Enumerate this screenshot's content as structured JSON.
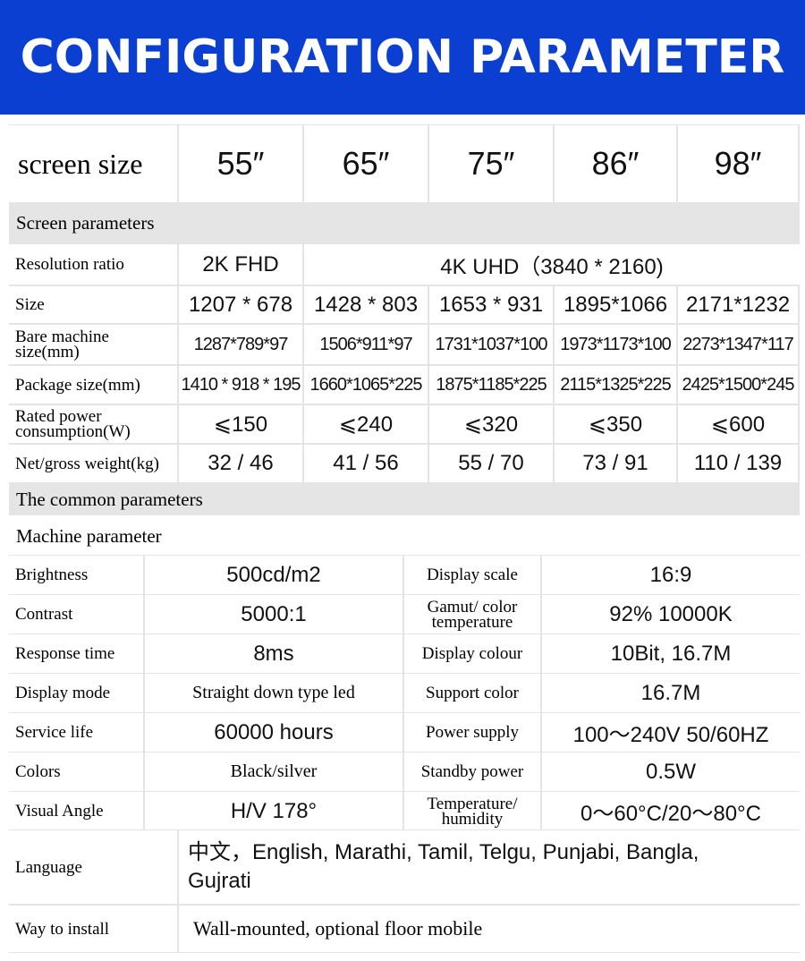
{
  "header": {
    "title": "CONFIGURATION PARAMETER",
    "color": "#0b3fd1"
  },
  "screen_size": {
    "label": "screen size",
    "sizes": [
      "55″",
      "65″",
      "75″",
      "86″",
      "98″"
    ]
  },
  "sections": {
    "screen": "Screen parameters",
    "common": "The common parameters",
    "machine": "Machine parameter"
  },
  "resolution": {
    "label": "Resolution ratio",
    "v55": "2K FHD",
    "other": "4K UHD（3840 * 2160)"
  },
  "screen_rows": [
    {
      "label": "Size",
      "values": [
        "1207 * 678",
        "1428 * 803",
        "1653 * 931",
        "1895*1066",
        "2171*1232"
      ]
    },
    {
      "label": "Bare machine size(mm)",
      "values": [
        "1287*789*97",
        "1506*911*97",
        "1731*1037*100",
        "1973*1173*100",
        "2273*1347*117"
      ]
    },
    {
      "label": "Package size(mm)",
      "values": [
        "1410 * 918 * 195",
        "1660*1065*225",
        "1875*1185*225",
        "2115*1325*225",
        "2425*1500*245"
      ]
    },
    {
      "label": "Rated power consumption(W)",
      "values": [
        "⩽150",
        "⩽240",
        "⩽320",
        "⩽350",
        "⩽600"
      ]
    },
    {
      "label": "Net/gross weight(kg)",
      "values": [
        "32 / 46",
        "41 / 56",
        "55 / 70",
        "73 / 91",
        "110 / 139"
      ]
    }
  ],
  "machine_rows": [
    {
      "l1": "Brightness",
      "v1": "500cd/m2",
      "l2": "Display scale",
      "v2": "16:9"
    },
    {
      "l1": "Contrast",
      "v1": "5000:1",
      "l2": "Gamut/ color temperature",
      "v2": "92%  10000K"
    },
    {
      "l1": "Response time",
      "v1": "8ms",
      "l2": "Display colour",
      "v2": "10Bit, 16.7M"
    },
    {
      "l1": "Display mode",
      "v1": "Straight down type led",
      "l2": "Support color",
      "v2": "16.7M"
    },
    {
      "l1": "Service life",
      "v1": "60000 hours",
      "l2": "Power supply",
      "v2": "100～240V 50/60HZ"
    },
    {
      "l1": "Colors",
      "v1": "Black/silver",
      "l2": "Standby power",
      "v2": "0.5W"
    },
    {
      "l1": "Visual Angle",
      "v1": "H/V 178°",
      "l2": "Temperature/ humidity",
      "v2": "0～60°C/20～80°C"
    }
  ],
  "language": {
    "label": "Language",
    "value": "中文，English, Marathi, Tamil, Telgu, Punjabi, Bangla, Gujrati"
  },
  "install": {
    "label": "Way to install",
    "value": "Wall-mounted, optional floor mobile"
  }
}
